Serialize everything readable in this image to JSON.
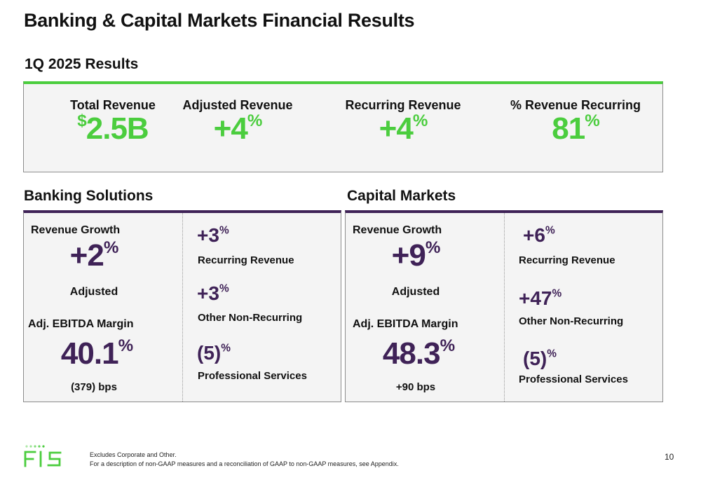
{
  "title": "Banking & Capital Markets Financial Results",
  "subtitle": "1Q 2025 Results",
  "colors": {
    "green": "#4bcd3e",
    "purple": "#3f2257"
  },
  "kpis": [
    {
      "label": "Total Revenue",
      "prefix": "$",
      "value": "2.5B",
      "suffix": ""
    },
    {
      "label": "Adjusted Revenue",
      "prefix": "",
      "value": "+4",
      "suffix": "%"
    },
    {
      "label": "Recurring Revenue",
      "prefix": "",
      "value": "+4",
      "suffix": "%"
    },
    {
      "label": "% Revenue Recurring",
      "prefix": "",
      "value": "81",
      "suffix": "%"
    }
  ],
  "banking": {
    "title": "Banking Solutions",
    "rev_growth_label": "Revenue Growth",
    "rev_growth_value": "+2",
    "rev_growth_unit": "%",
    "rev_growth_note": "Adjusted",
    "ebitda_label": "Adj. EBITDA Margin",
    "ebitda_value": "40.1",
    "ebitda_unit": "%",
    "ebitda_note": "(379) bps",
    "items": [
      {
        "value": "+3",
        "unit": "%",
        "label": "Recurring Revenue"
      },
      {
        "value": "+3",
        "unit": "%",
        "label": "Other Non-Recurring"
      },
      {
        "value": "(5)",
        "unit": "%",
        "label": "Professional Services"
      }
    ]
  },
  "capital": {
    "title": "Capital Markets",
    "rev_growth_label": "Revenue Growth",
    "rev_growth_value": "+9",
    "rev_growth_unit": "%",
    "rev_growth_note": "Adjusted",
    "ebitda_label": "Adj. EBITDA Margin",
    "ebitda_value": "48.3",
    "ebitda_unit": "%",
    "ebitda_note": "+90 bps",
    "items": [
      {
        "value": "+6",
        "unit": "%",
        "label": "Recurring Revenue"
      },
      {
        "value": "+47",
        "unit": "%",
        "label": "Other Non-Recurring"
      },
      {
        "value": "(5)",
        "unit": "%",
        "label": "Professional Services"
      }
    ]
  },
  "footnotes": [
    "Excludes Corporate and Other.",
    "For a description of non-GAAP measures and a reconciliation of GAAP to non-GAAP measures, see Appendix."
  ],
  "logo_text": "FIS",
  "page_number": "10"
}
